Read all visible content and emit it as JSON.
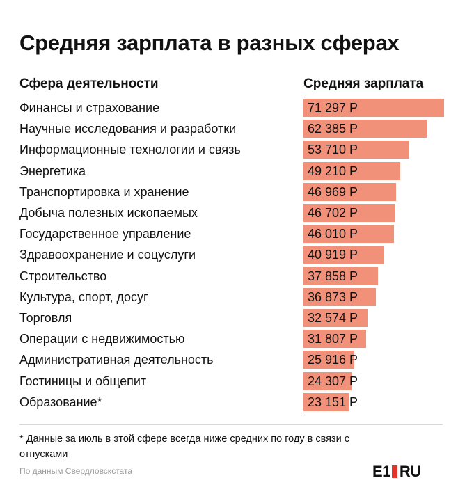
{
  "header": {
    "title": "Средняя зарплата в разных сферах",
    "col_left": "Сфера деятельности",
    "col_right": "Средняя зарплата"
  },
  "chart_data": {
    "type": "bar",
    "orientation": "horizontal",
    "title": "Средняя зарплата в разных сферах",
    "xlabel": "Средняя зарплата",
    "ylabel": "Сфера деятельности",
    "xlim": [
      0,
      71297
    ],
    "bar_color": "#f2917a",
    "categories": [
      "Финансы и страхование",
      "Научные исследования и разработки",
      "Информационные технологии и связь",
      "Энергетика",
      "Транспортировка и хранение",
      "Добыча полезных ископаемых",
      "Государственное управление",
      "Здравоохранение и соцуслуги",
      "Строительство",
      "Культура, спорт, досуг",
      "Торговля",
      "Операции с недвижимостью",
      "Административная деятельность",
      "Гостиницы и общепит",
      "Образование*"
    ],
    "values": [
      71297,
      62385,
      53710,
      49210,
      46969,
      46702,
      46010,
      40919,
      37858,
      36873,
      32574,
      31807,
      25916,
      24307,
      23151
    ],
    "value_labels": [
      "71 297 Р",
      "62 385 Р",
      "53 710 Р",
      "49 210 Р",
      "46 969 Р",
      "46 702 Р",
      "46 010 Р",
      "40 919 Р",
      "37 858 Р",
      "36 873 Р",
      "32 574 Р",
      "31 807 Р",
      "25 916 Р",
      "24 307 Р",
      "23 151 Р"
    ]
  },
  "footer": {
    "footnote": "* Данные за июль в этой сфере всегда ниже средних по году в связи с отпусками",
    "source": "По данным Свердловскстата",
    "logo_left": "E1",
    "logo_right": "RU"
  }
}
